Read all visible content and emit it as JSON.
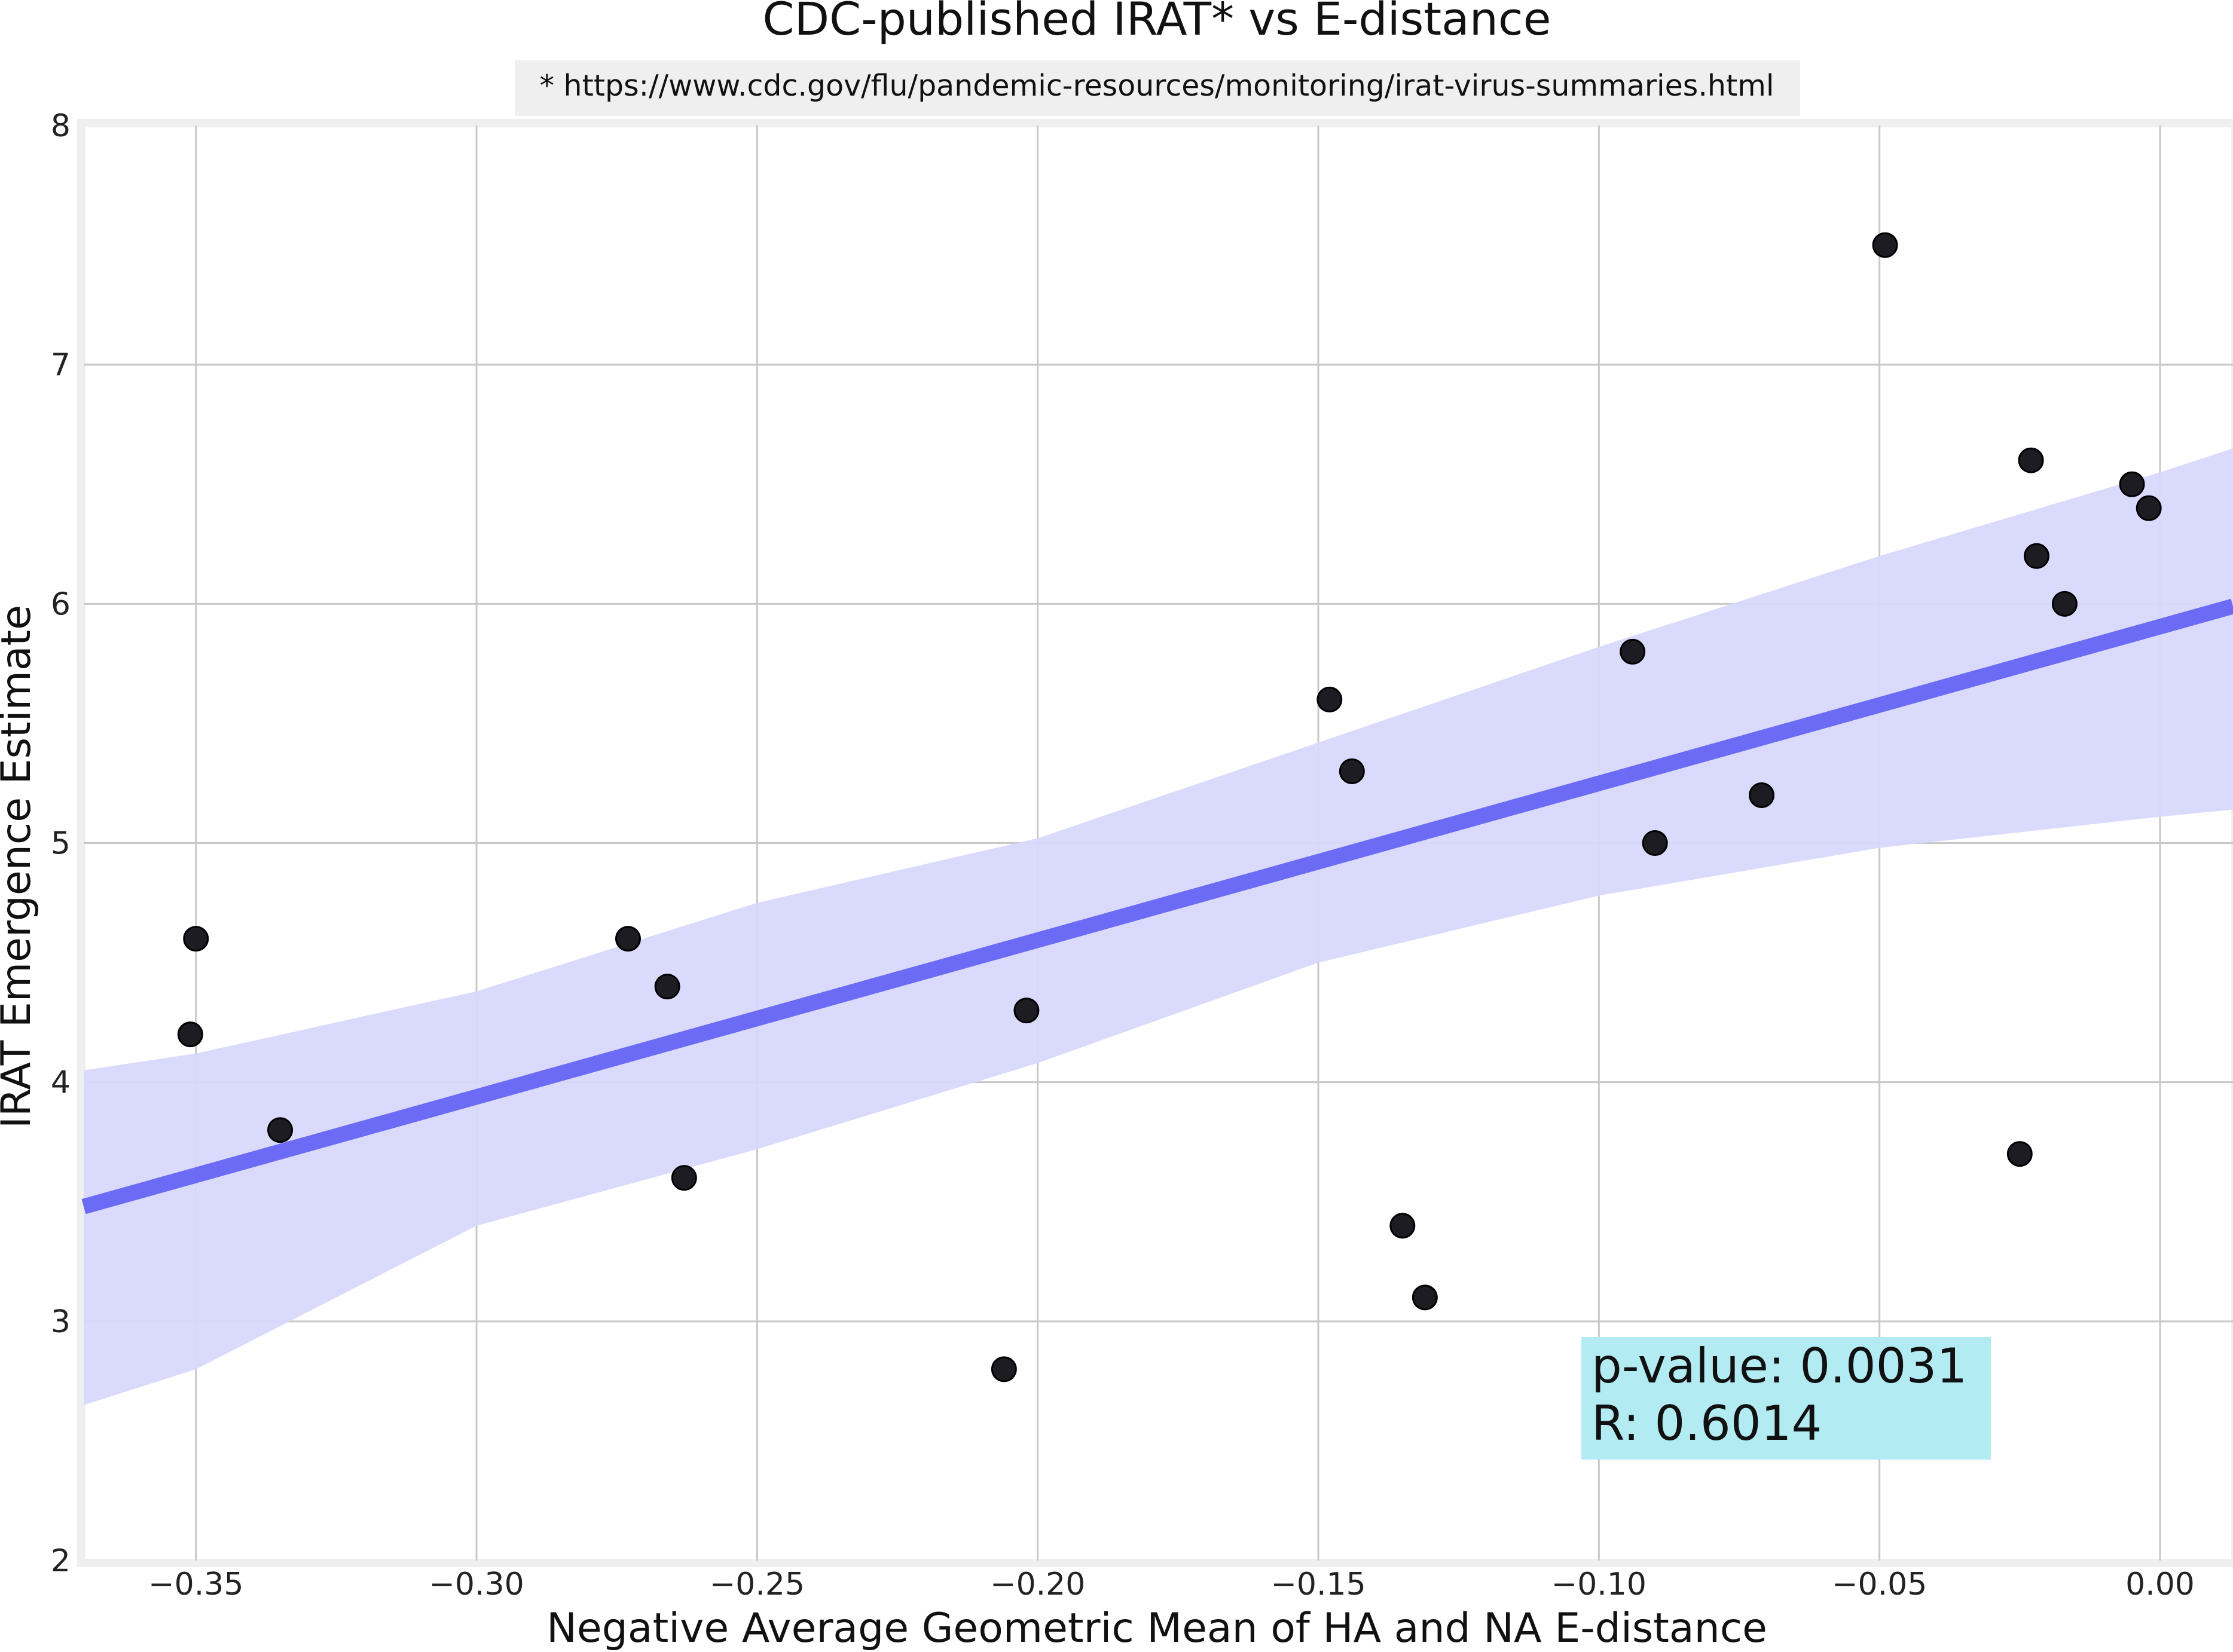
{
  "chart_data": {
    "type": "scatter",
    "title": "CDC-published IRAT* vs E-distance",
    "subtitle": "* https://www.cdc.gov/flu/pandemic-resources/monitoring/irat-virus-summaries.html",
    "xlabel": "Negative Average Geometric Mean of HA and NA E-distance",
    "ylabel": "IRAT Emergence Estimate",
    "xlim": [
      -0.37,
      0.013
    ],
    "ylim": [
      2,
      8
    ],
    "xticks": [
      -0.35,
      -0.3,
      -0.25,
      -0.2,
      -0.15,
      -0.1,
      -0.05,
      0.0
    ],
    "xtick_labels": [
      "−0.35",
      "−0.30",
      "−0.25",
      "−0.20",
      "−0.15",
      "−0.10",
      "−0.05",
      "0.00"
    ],
    "yticks": [
      2,
      3,
      4,
      5,
      6,
      7,
      8
    ],
    "ytick_labels": [
      "2",
      "3",
      "4",
      "5",
      "6",
      "7",
      "8"
    ],
    "grid": true,
    "colors": {
      "point": "#1c1c22",
      "point_in_band": "#1c1c40",
      "point_edge": "#000000",
      "regression_line": "#6b6bf5",
      "confidence_band": "#d8d8fc",
      "grid": "#c8c8c8",
      "annotation_bg": "#b3ebf3"
    },
    "points": [
      {
        "x": -0.35,
        "y": 4.6
      },
      {
        "x": -0.351,
        "y": 4.2
      },
      {
        "x": -0.335,
        "y": 3.8
      },
      {
        "x": -0.273,
        "y": 4.6
      },
      {
        "x": -0.266,
        "y": 4.4
      },
      {
        "x": -0.263,
        "y": 3.6
      },
      {
        "x": -0.206,
        "y": 2.8
      },
      {
        "x": -0.202,
        "y": 4.3
      },
      {
        "x": -0.148,
        "y": 5.6
      },
      {
        "x": -0.144,
        "y": 5.3
      },
      {
        "x": -0.135,
        "y": 3.4
      },
      {
        "x": -0.131,
        "y": 3.1
      },
      {
        "x": -0.094,
        "y": 5.8
      },
      {
        "x": -0.09,
        "y": 5.0
      },
      {
        "x": -0.071,
        "y": 5.2
      },
      {
        "x": -0.049,
        "y": 7.5
      },
      {
        "x": -0.025,
        "y": 3.7
      },
      {
        "x": -0.023,
        "y": 6.6
      },
      {
        "x": -0.022,
        "y": 6.2
      },
      {
        "x": -0.017,
        "y": 6.0
      },
      {
        "x": -0.005,
        "y": 6.5
      },
      {
        "x": -0.002,
        "y": 6.4
      }
    ],
    "regression": {
      "x": [
        -0.37,
        0.013
      ],
      "y": [
        3.48,
        5.99
      ]
    },
    "confidence_band": {
      "x": [
        -0.37,
        -0.35,
        -0.3,
        -0.25,
        -0.2,
        -0.15,
        -0.1,
        -0.05,
        0.0,
        0.013
      ],
      "upper": [
        4.05,
        4.12,
        4.38,
        4.75,
        5.02,
        5.42,
        5.82,
        6.2,
        6.55,
        6.65
      ],
      "lower": [
        2.65,
        2.8,
        3.4,
        3.72,
        4.08,
        4.5,
        4.78,
        4.98,
        5.11,
        5.14
      ]
    },
    "annotation": {
      "line1": "p-value: 0.0031",
      "line2": "R: 0.6014",
      "placement": "bottom-right"
    }
  }
}
